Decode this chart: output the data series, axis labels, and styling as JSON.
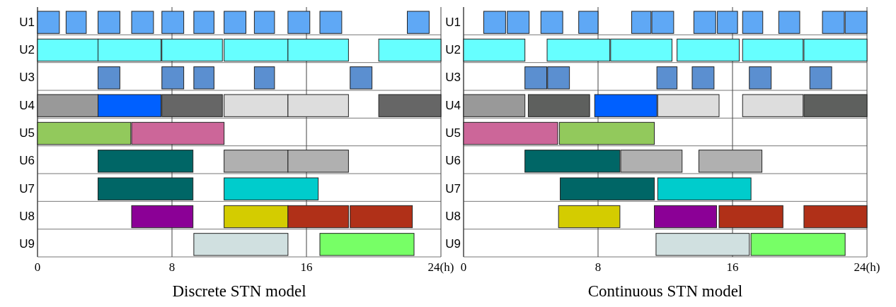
{
  "chart_data": [
    {
      "type": "bar",
      "orientation": "horizontal",
      "title": "Discrete STN model",
      "categories": [
        "U1",
        "U2",
        "U3",
        "U4",
        "U5",
        "U6",
        "U7",
        "U8",
        "U9"
      ],
      "xlim": [
        0,
        24
      ],
      "xticks": [
        0,
        8,
        16,
        {
          "value": 24,
          "label": "24(h)"
        }
      ],
      "grid": "x",
      "series": [
        {
          "base": [
            0,
            0,
            3.6,
            0,
            0,
            3.6,
            3.6,
            5.6,
            9.3
          ],
          "values": [
            1.3,
            3.6,
            1.3,
            3.6,
            5.55,
            5.65,
            5.65,
            3.65,
            5.6
          ],
          "colors": [
            "#5fa8f5",
            "#66ffff",
            "#5b8fd0",
            "#999999",
            "#92c95c",
            "#006666",
            "#006666",
            "#8b0096",
            "#d0e0e0"
          ]
        },
        {
          "base": [
            1.7,
            3.6,
            7.4,
            3.6,
            5.6,
            11.1,
            11.1,
            11.1,
            16.8
          ],
          "values": [
            1.2,
            3.75,
            1.3,
            3.75,
            5.5,
            3.8,
            5.6,
            3.8,
            5.6
          ],
          "colors": [
            "#5fa8f5",
            "#66ffff",
            "#5b8fd0",
            "#0060ff",
            "#cc6699",
            "#b0b0b0",
            "#00cccc",
            "#d4cc00",
            "#77ff66"
          ]
        },
        {
          "base": [
            3.6,
            7.4,
            9.3,
            7.4,
            null,
            14.9,
            null,
            14.9,
            null
          ],
          "values": [
            1.3,
            3.6,
            1.2,
            3.6,
            null,
            3.6,
            null,
            3.6,
            null
          ],
          "colors": [
            "#5fa8f5",
            "#66ffff",
            "#5b8fd0",
            "#666666",
            null,
            "#b0b0b0",
            null,
            "#b03018",
            null
          ]
        },
        {
          "base": [
            5.6,
            11.1,
            12.9,
            11.1,
            null,
            null,
            null,
            18.6,
            null
          ],
          "values": [
            1.3,
            3.8,
            1.2,
            3.8,
            null,
            null,
            null,
            3.7,
            null
          ],
          "colors": [
            "#5fa8f5",
            "#66ffff",
            "#5b8fd0",
            "#dddddd",
            null,
            null,
            null,
            "#b03018",
            null
          ]
        },
        {
          "base": [
            7.4,
            14.9,
            18.6,
            14.9,
            null,
            null,
            null,
            null,
            null
          ],
          "values": [
            1.3,
            3.6,
            1.3,
            3.6,
            null,
            null,
            null,
            null,
            null
          ],
          "colors": [
            "#5fa8f5",
            "#66ffff",
            "#5b8fd0",
            "#dddddd",
            null,
            null,
            null,
            null,
            null
          ]
        },
        {
          "base": [
            9.3,
            20.3,
            null,
            20.3,
            null,
            null,
            null,
            null,
            null
          ],
          "values": [
            1.2,
            3.7,
            null,
            3.7,
            null,
            null,
            null,
            null,
            null
          ],
          "colors": [
            "#5fa8f5",
            "#66ffff",
            null,
            "#666666",
            null,
            null,
            null,
            null,
            null
          ]
        },
        {
          "base": [
            11.1,
            null,
            null,
            null,
            null,
            null,
            null,
            null,
            null
          ],
          "values": [
            1.3,
            null,
            null,
            null,
            null,
            null,
            null,
            null,
            null
          ],
          "color": "#5fa8f5"
        },
        {
          "base": [
            12.9,
            null,
            null,
            null,
            null,
            null,
            null,
            null,
            null
          ],
          "values": [
            1.2,
            null,
            null,
            null,
            null,
            null,
            null,
            null,
            null
          ],
          "color": "#5fa8f5"
        },
        {
          "base": [
            14.9,
            null,
            null,
            null,
            null,
            null,
            null,
            null,
            null
          ],
          "values": [
            1.3,
            null,
            null,
            null,
            null,
            null,
            null,
            null,
            null
          ],
          "color": "#5fa8f5"
        },
        {
          "base": [
            16.8,
            null,
            null,
            null,
            null,
            null,
            null,
            null,
            null
          ],
          "values": [
            1.3,
            null,
            null,
            null,
            null,
            null,
            null,
            null,
            null
          ],
          "color": "#5fa8f5"
        },
        {
          "base": [
            22,
            null,
            null,
            null,
            null,
            null,
            null,
            null,
            null
          ],
          "values": [
            1.3,
            null,
            null,
            null,
            null,
            null,
            null,
            null,
            null
          ],
          "color": "#5fa8f5"
        }
      ]
    },
    {
      "type": "bar",
      "orientation": "horizontal",
      "title": "Continuous STN model",
      "categories": [
        "U1",
        "U2",
        "U3",
        "U4",
        "U5",
        "U6",
        "U7",
        "U8",
        "U9"
      ],
      "xlim": [
        0,
        24
      ],
      "xticks": [
        0,
        8,
        16,
        {
          "value": 24,
          "label": "24(h)"
        }
      ],
      "grid": "x",
      "series": [
        {
          "base": [
            1.2,
            0,
            3.65,
            0,
            0,
            3.65,
            5.75,
            5.65,
            11.45
          ],
          "values": [
            1.3,
            3.65,
            1.3,
            3.65,
            5.6,
            5.65,
            5.6,
            3.65,
            5.55
          ],
          "colors": [
            "#5fa8f5",
            "#66ffff",
            "#5b8fd0",
            "#999999",
            "#cc6699",
            "#006666",
            "#006666",
            "#d4cc00",
            "#d0e0e0"
          ]
        },
        {
          "base": [
            2.6,
            4.97,
            5.0,
            3.85,
            5.7,
            9.35,
            11.55,
            11.35,
            17.1
          ],
          "values": [
            1.3,
            3.73,
            1.3,
            3.65,
            5.65,
            3.65,
            5.55,
            3.7,
            5.6
          ],
          "colors": [
            "#5fa8f5",
            "#66ffff",
            "#5b8fd0",
            "#5e605e",
            "#92c95c",
            "#b0b0b0",
            "#00cccc",
            "#8b0096",
            "#77ff66"
          ]
        },
        {
          "base": [
            4.6,
            8.75,
            11.5,
            7.8,
            null,
            14.0,
            null,
            15.2,
            null
          ],
          "values": [
            1.3,
            3.65,
            1.2,
            3.7,
            null,
            3.75,
            null,
            3.8,
            null
          ],
          "colors": [
            "#5fa8f5",
            "#66ffff",
            "#5b8fd0",
            "#0060ff",
            null,
            "#b0b0b0",
            null,
            "#b03018",
            null
          ]
        },
        {
          "base": [
            6.85,
            12.7,
            13.6,
            11.55,
            null,
            null,
            null,
            20.25,
            null
          ],
          "values": [
            1.15,
            3.7,
            1.3,
            3.65,
            null,
            null,
            null,
            3.75,
            null
          ],
          "colors": [
            "#5fa8f5",
            "#66ffff",
            "#5b8fd0",
            "#dddddd",
            null,
            null,
            null,
            "#b03018",
            null
          ]
        },
        {
          "base": [
            10.0,
            16.6,
            17.0,
            16.6,
            null,
            null,
            null,
            null,
            null
          ],
          "values": [
            1.15,
            3.6,
            1.3,
            3.6,
            null,
            null,
            null,
            null,
            null
          ],
          "colors": [
            "#5fa8f5",
            "#66ffff",
            "#5b8fd0",
            "#dddddd",
            null,
            null,
            null,
            null,
            null
          ]
        },
        {
          "base": [
            11.2,
            20.25,
            20.6,
            20.25,
            null,
            null,
            null,
            null,
            null
          ],
          "values": [
            1.3,
            3.75,
            1.3,
            3.75,
            null,
            null,
            null,
            null,
            null
          ],
          "colors": [
            "#5fa8f5",
            "#66ffff",
            "#5b8fd0",
            "#5e605e",
            null,
            null,
            null,
            null,
            null
          ]
        },
        {
          "base": [
            13.7,
            null,
            null,
            null,
            null,
            null,
            null,
            null,
            null
          ],
          "values": [
            1.3,
            null,
            null,
            null,
            null,
            null,
            null,
            null,
            null
          ],
          "color": "#5fa8f5"
        },
        {
          "base": [
            15.1,
            null,
            null,
            null,
            null,
            null,
            null,
            null,
            null
          ],
          "values": [
            1.2,
            null,
            null,
            null,
            null,
            null,
            null,
            null,
            null
          ],
          "color": "#5fa8f5"
        },
        {
          "base": [
            16.6,
            null,
            null,
            null,
            null,
            null,
            null,
            null,
            null
          ],
          "values": [
            1.2,
            null,
            null,
            null,
            null,
            null,
            null,
            null,
            null
          ],
          "color": "#5fa8f5"
        },
        {
          "base": [
            18.75,
            null,
            null,
            null,
            null,
            null,
            null,
            null,
            null
          ],
          "values": [
            1.25,
            null,
            null,
            null,
            null,
            null,
            null,
            null,
            null
          ],
          "color": "#5fa8f5"
        },
        {
          "base": [
            21.35,
            null,
            null,
            null,
            null,
            null,
            null,
            null,
            null
          ],
          "values": [
            1.3,
            null,
            null,
            null,
            null,
            null,
            null,
            null,
            null
          ],
          "color": "#5fa8f5"
        },
        {
          "base": [
            22.7,
            null,
            null,
            null,
            null,
            null,
            null,
            null,
            null
          ],
          "values": [
            1.3,
            null,
            null,
            null,
            null,
            null,
            null,
            null,
            null
          ],
          "color": "#5fa8f5"
        }
      ]
    }
  ]
}
